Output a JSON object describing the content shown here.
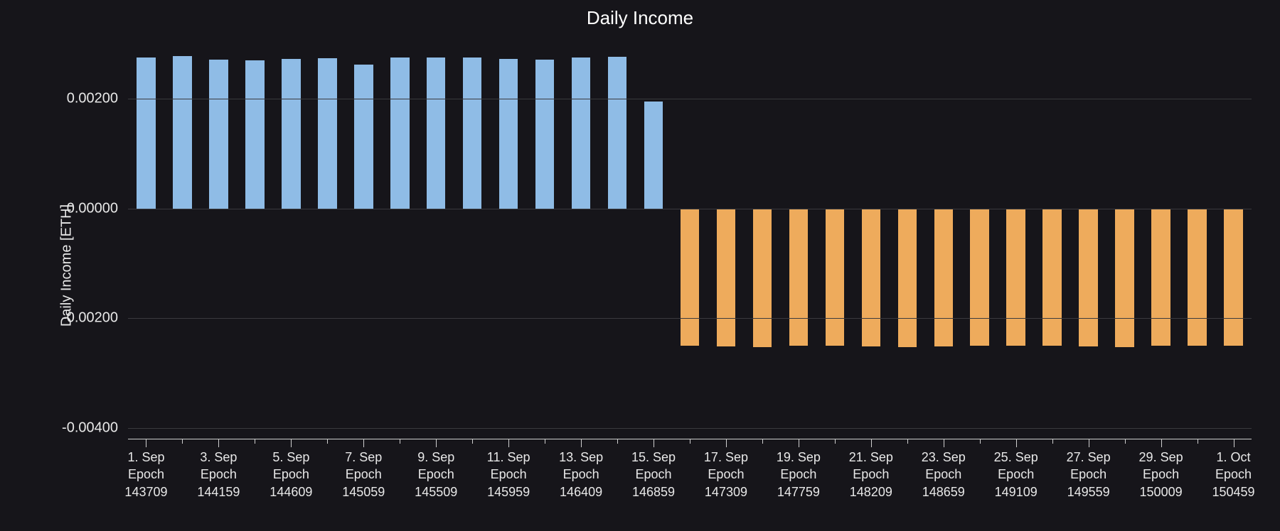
{
  "chart": {
    "type": "bar",
    "title": "Daily Income",
    "title_fontsize": 26,
    "title_color": "#ffffff",
    "background_color": "#16151a",
    "ylabel": "Daily Income [ETH]",
    "label_fontsize": 20,
    "label_color": "#e8e8e8",
    "grid_color": "#3a3a3e",
    "axis_line_color": "#cfcfcf",
    "tick_fontsize_y": 20,
    "tick_fontsize_x": 18,
    "tick_color": "#e8e8e8",
    "ylim": [
      -0.0042,
      0.003
    ],
    "yticks": [
      {
        "value": 0.002,
        "label": "0.00200"
      },
      {
        "value": 0.0,
        "label": "0.00000"
      },
      {
        "value": -0.002,
        "label": "-0.00200"
      },
      {
        "value": -0.004,
        "label": "-0.00400"
      }
    ],
    "positive_color": "#8fbce6",
    "negative_color": "#eeab5c",
    "bar_width": 0.52,
    "data": [
      {
        "value": 0.00275
      },
      {
        "value": 0.00278
      },
      {
        "value": 0.00272
      },
      {
        "value": 0.0027
      },
      {
        "value": 0.00273
      },
      {
        "value": 0.00274
      },
      {
        "value": 0.00262
      },
      {
        "value": 0.00275
      },
      {
        "value": 0.00275
      },
      {
        "value": 0.00275
      },
      {
        "value": 0.00273
      },
      {
        "value": 0.00272
      },
      {
        "value": 0.00275
      },
      {
        "value": 0.00277
      },
      {
        "value": 0.00195
      },
      {
        "value": -0.0025
      },
      {
        "value": -0.00252
      },
      {
        "value": -0.00253
      },
      {
        "value": -0.0025
      },
      {
        "value": -0.0025
      },
      {
        "value": -0.00252
      },
      {
        "value": -0.00253
      },
      {
        "value": -0.00252
      },
      {
        "value": -0.00251
      },
      {
        "value": -0.0025
      },
      {
        "value": -0.0025
      },
      {
        "value": -0.00252
      },
      {
        "value": -0.00253
      },
      {
        "value": -0.0025
      },
      {
        "value": -0.0025
      },
      {
        "value": -0.00251
      }
    ],
    "x_major_ticks": [
      {
        "index": 0,
        "line1": "1. Sep",
        "line2": "Epoch",
        "line3": "143709"
      },
      {
        "index": 2,
        "line1": "3. Sep",
        "line2": "Epoch",
        "line3": "144159"
      },
      {
        "index": 4,
        "line1": "5. Sep",
        "line2": "Epoch",
        "line3": "144609"
      },
      {
        "index": 6,
        "line1": "7. Sep",
        "line2": "Epoch",
        "line3": "145059"
      },
      {
        "index": 8,
        "line1": "9. Sep",
        "line2": "Epoch",
        "line3": "145509"
      },
      {
        "index": 10,
        "line1": "11. Sep",
        "line2": "Epoch",
        "line3": "145959"
      },
      {
        "index": 12,
        "line1": "13. Sep",
        "line2": "Epoch",
        "line3": "146409"
      },
      {
        "index": 14,
        "line1": "15. Sep",
        "line2": "Epoch",
        "line3": "146859"
      },
      {
        "index": 16,
        "line1": "17. Sep",
        "line2": "Epoch",
        "line3": "147309"
      },
      {
        "index": 18,
        "line1": "19. Sep",
        "line2": "Epoch",
        "line3": "147759"
      },
      {
        "index": 20,
        "line1": "21. Sep",
        "line2": "Epoch",
        "line3": "148209"
      },
      {
        "index": 22,
        "line1": "23. Sep",
        "line2": "Epoch",
        "line3": "148659"
      },
      {
        "index": 24,
        "line1": "25. Sep",
        "line2": "Epoch",
        "line3": "149109"
      },
      {
        "index": 26,
        "line1": "27. Sep",
        "line2": "Epoch",
        "line3": "149559"
      },
      {
        "index": 28,
        "line1": "29. Sep",
        "line2": "Epoch",
        "line3": "150009"
      },
      {
        "index": 30,
        "line1": "1. Oct",
        "line2": "Epoch",
        "line3": "150459"
      }
    ],
    "x_minor_tick_indices": [
      1,
      3,
      5,
      7,
      9,
      11,
      13,
      15,
      17,
      19,
      21,
      23,
      25,
      27,
      29
    ]
  }
}
